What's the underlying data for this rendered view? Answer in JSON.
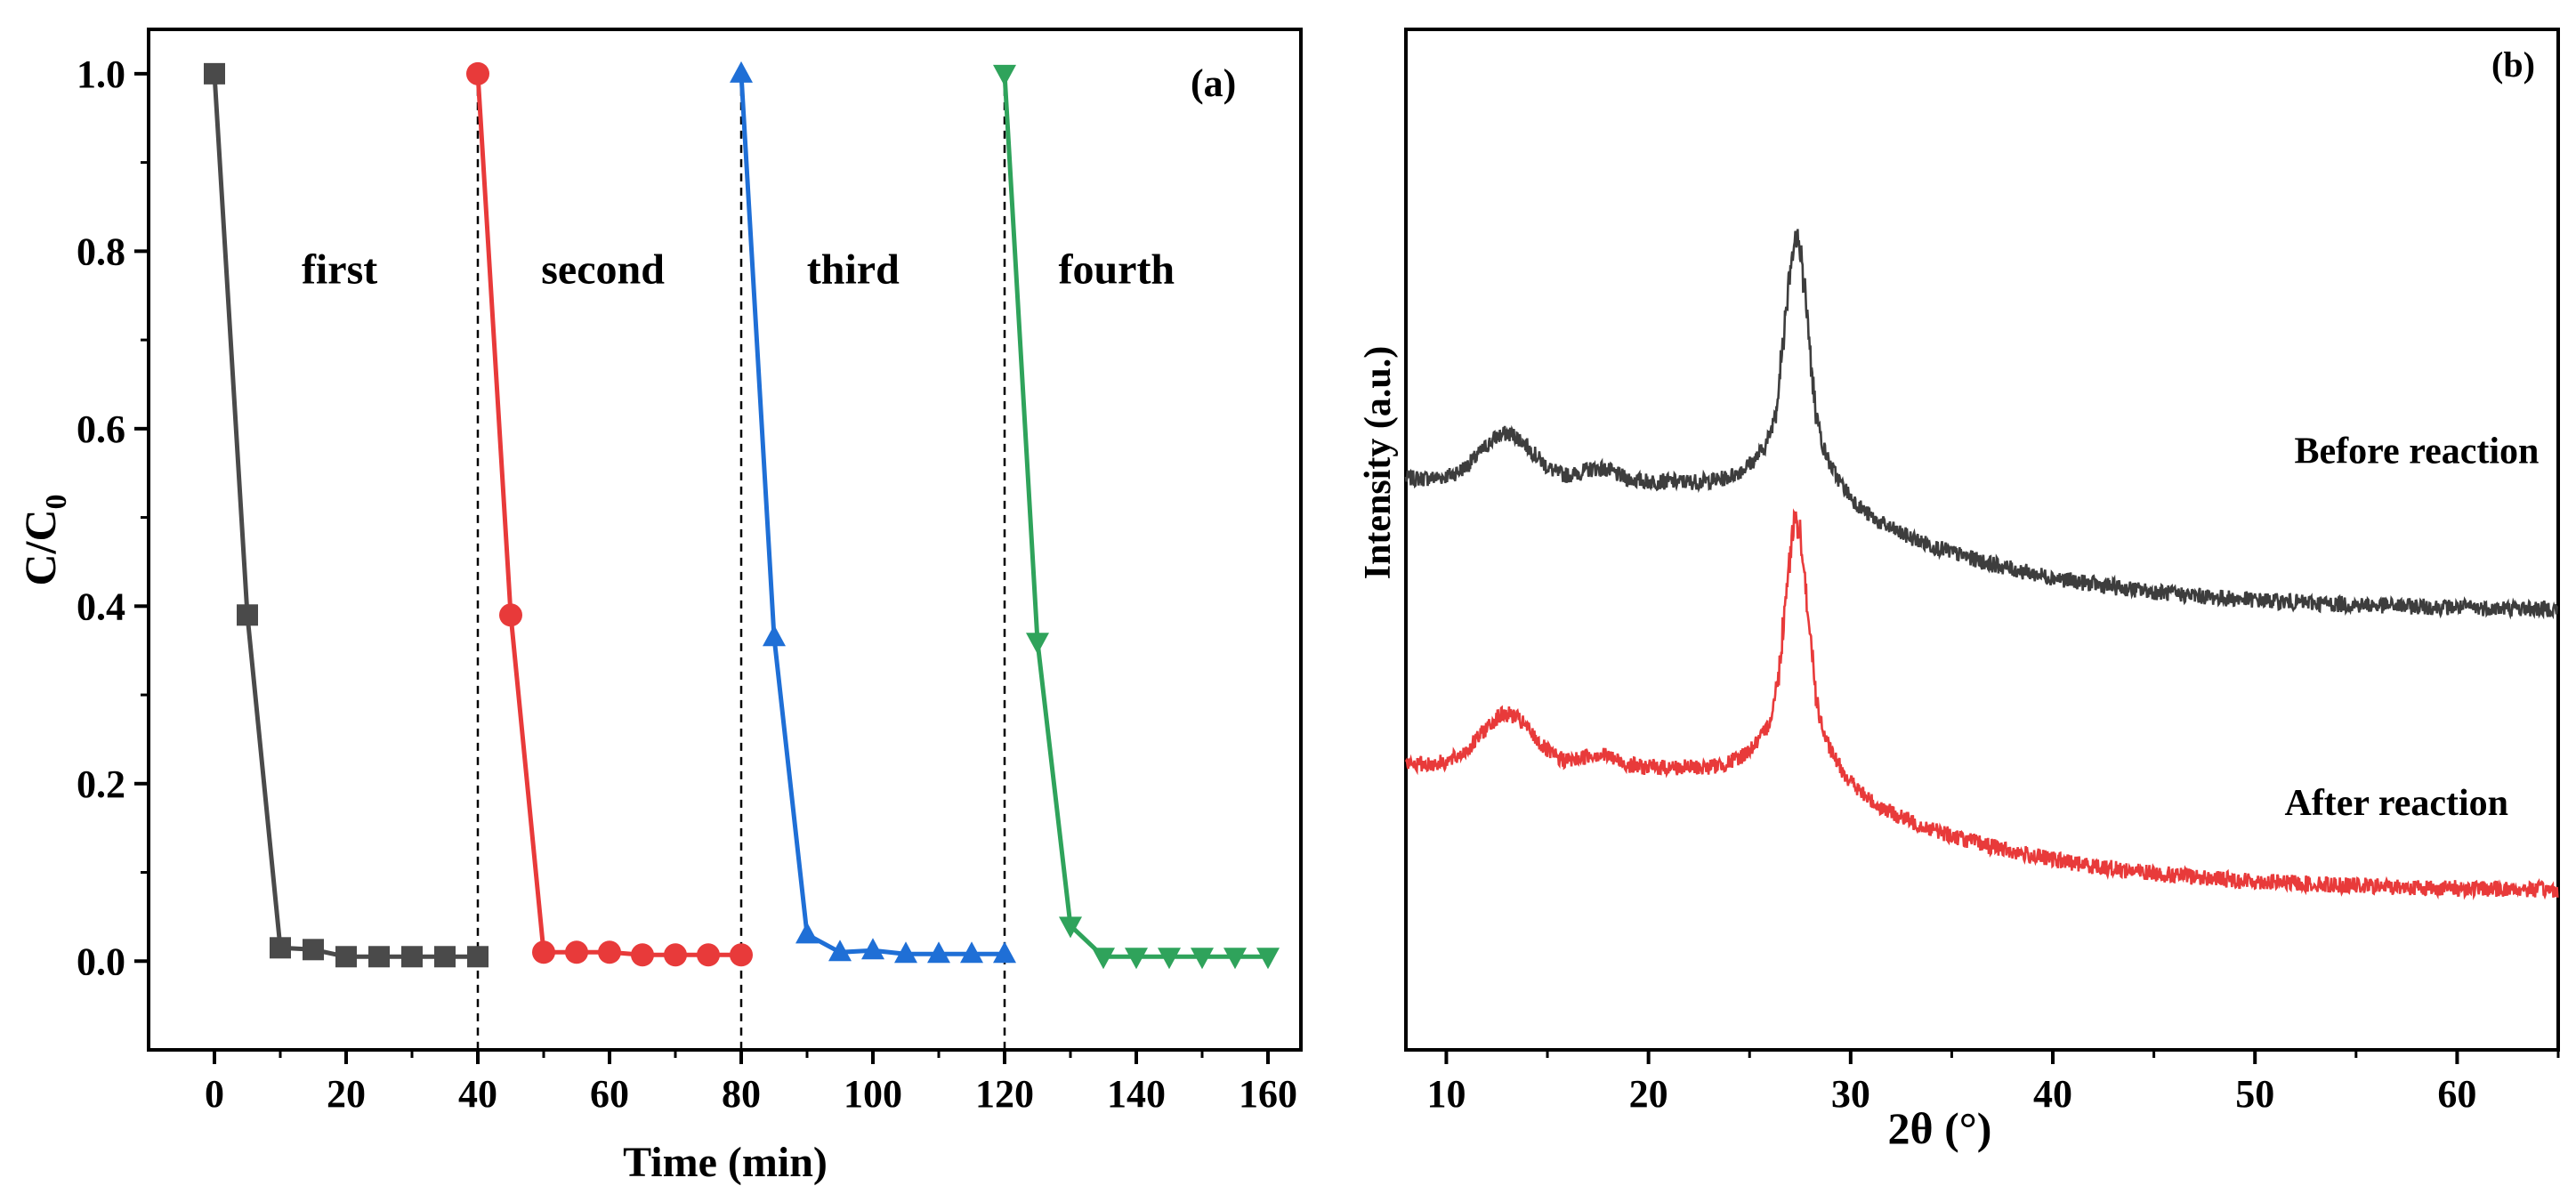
{
  "chart_data": [
    {
      "panel": "(a)",
      "type": "line",
      "xlabel": "Time (min)",
      "ylabel_main": "C/C",
      "ylabel_sub": "0",
      "xlim": [
        -10,
        165
      ],
      "ylim": [
        -0.1,
        1.05
      ],
      "xticks": [
        0,
        20,
        40,
        60,
        80,
        100,
        120,
        140,
        160
      ],
      "yticks": [
        0.0,
        0.2,
        0.4,
        0.6,
        0.8,
        1.0
      ],
      "ytick_labels": [
        "0.0",
        "0.2",
        "0.4",
        "0.6",
        "0.8",
        "1.0"
      ],
      "grid": false,
      "cycle_boundaries": [
        40,
        80,
        120
      ],
      "series": [
        {
          "name": "first",
          "color": "#4a4a4a",
          "marker": "square",
          "x": [
            0,
            5,
            10,
            15,
            20,
            25,
            30,
            35,
            40
          ],
          "y": [
            1.0,
            0.39,
            0.015,
            0.013,
            0.005,
            0.005,
            0.005,
            0.005,
            0.005
          ]
        },
        {
          "name": "second",
          "color": "#e83a3a",
          "marker": "circle",
          "x": [
            40,
            45,
            50,
            55,
            60,
            65,
            70,
            75,
            80
          ],
          "y": [
            1.0,
            0.39,
            0.01,
            0.01,
            0.01,
            0.007,
            0.007,
            0.007,
            0.007
          ]
        },
        {
          "name": "third",
          "color": "#1f6fd6",
          "marker": "triangle-up",
          "x": [
            80,
            85,
            90,
            95,
            100,
            105,
            110,
            115,
            120
          ],
          "y": [
            1.0,
            0.365,
            0.03,
            0.01,
            0.012,
            0.008,
            0.008,
            0.008,
            0.008
          ]
        },
        {
          "name": "fourth",
          "color": "#2fa35b",
          "marker": "triangle-down",
          "x": [
            120,
            125,
            130,
            135,
            140,
            145,
            150,
            155,
            160
          ],
          "y": [
            1.0,
            0.36,
            0.04,
            0.005,
            0.005,
            0.005,
            0.005,
            0.005,
            0.005
          ]
        }
      ],
      "annotations": [
        {
          "text": "first",
          "x": 19,
          "y": 0.78
        },
        {
          "text": "second",
          "x": 59,
          "y": 0.78
        },
        {
          "text": "third",
          "x": 97,
          "y": 0.78
        },
        {
          "text": "fourth",
          "x": 137,
          "y": 0.78
        }
      ]
    },
    {
      "panel": "(b)",
      "type": "line",
      "xlabel": "2θ (°)",
      "ylabel": "Intensity (a.u.)",
      "xlim": [
        8,
        65
      ],
      "ylim": [
        0,
        10
      ],
      "xticks": [
        10,
        20,
        30,
        40,
        50,
        60
      ],
      "grid": false,
      "series": [
        {
          "name": "Before reaction",
          "color": "#3d3d3d",
          "baseline": 5.6,
          "hump_center": 13,
          "hump_height": 0.45,
          "peak_center": 27.3,
          "peak_height": 1.85,
          "tail_end": 4.3,
          "noise": 0.08
        },
        {
          "name": "After reaction",
          "color": "#e83a3a",
          "baseline": 2.8,
          "hump_center": 13,
          "hump_height": 0.5,
          "peak_center": 27.3,
          "peak_height": 1.85,
          "tail_end": 1.55,
          "noise": 0.08
        }
      ],
      "labels": [
        {
          "text": "Before reaction",
          "x": 58,
          "y": 5.75
        },
        {
          "text": "After reaction",
          "x": 57,
          "y": 2.3
        }
      ]
    }
  ]
}
